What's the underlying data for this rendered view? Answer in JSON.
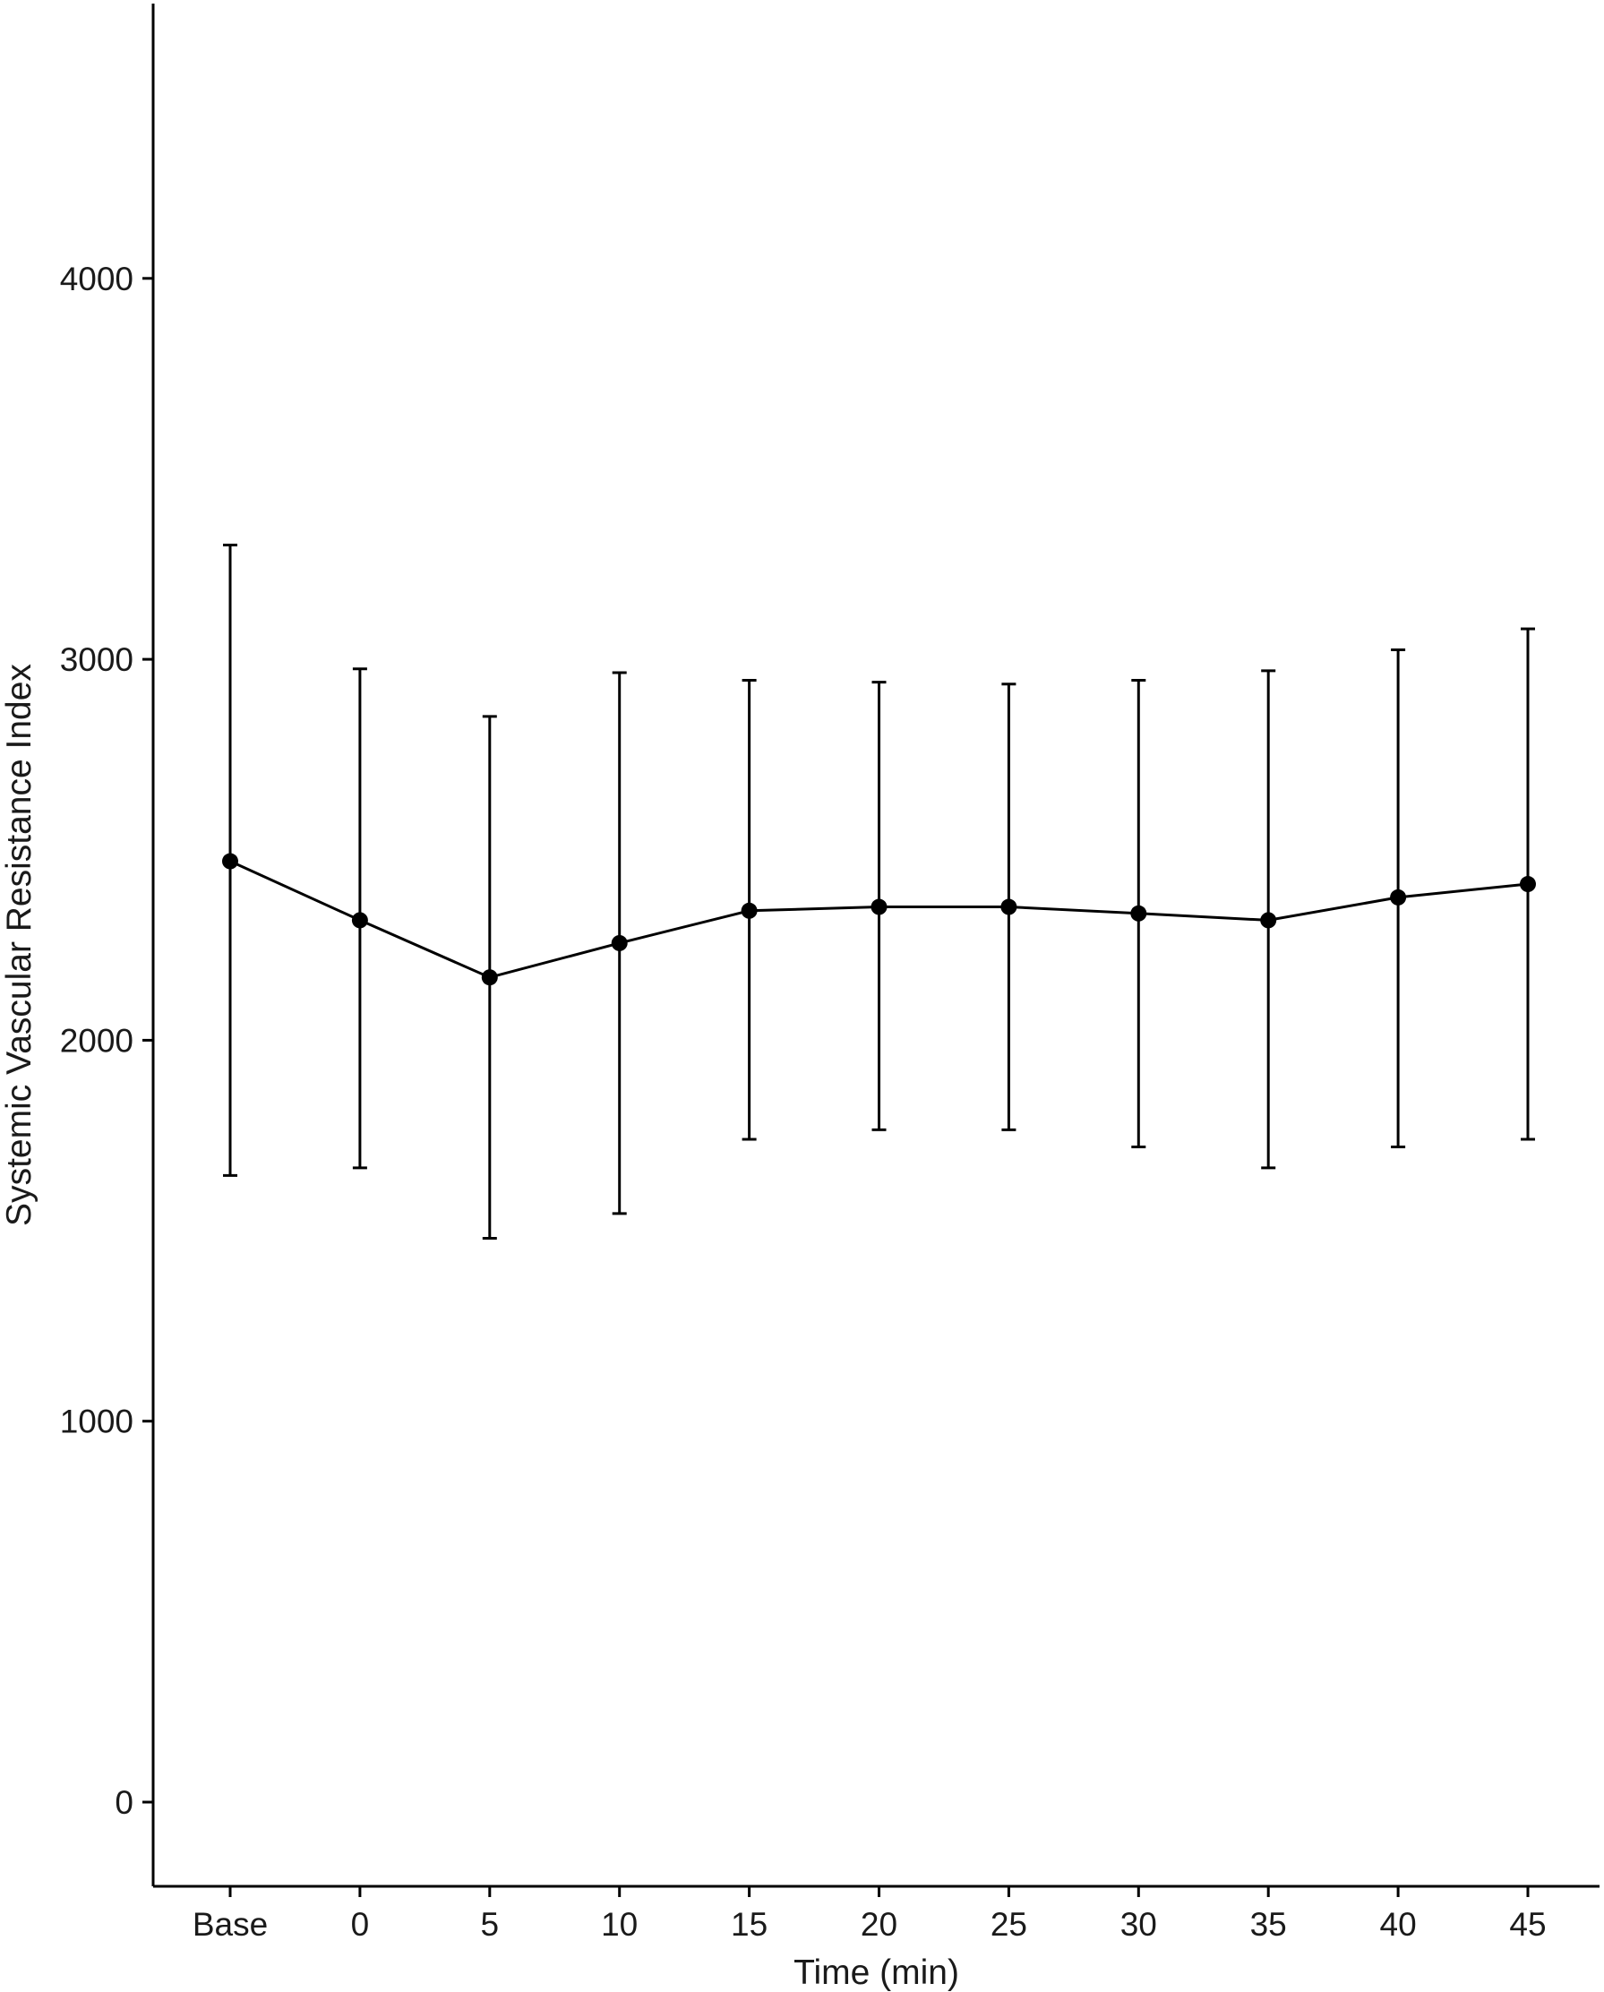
{
  "chart_data": {
    "type": "line",
    "title": "",
    "xlabel": "Time (min)",
    "ylabel": "Systemic Vascular Resistance Index",
    "categories": [
      "Base",
      "0",
      "5",
      "10",
      "15",
      "20",
      "25",
      "30",
      "35",
      "40",
      "45"
    ],
    "y_ticks": [
      0,
      1000,
      2000,
      3000,
      4000
    ],
    "y_tick_labels": [
      "0",
      "1000",
      "2000",
      "3000",
      "4000"
    ],
    "ylim": [
      -220,
      4720
    ],
    "grid": false,
    "legend": "none",
    "series": [
      {
        "values": [
          2470,
          2315,
          2165,
          2255,
          2340,
          2350,
          2350,
          2333,
          2315,
          2375,
          2410
        ],
        "error_low": [
          1645,
          1665,
          1480,
          1545,
          1740,
          1765,
          1765,
          1720,
          1665,
          1720,
          1740
        ],
        "error_high": [
          3300,
          2975,
          2850,
          2965,
          2945,
          2940,
          2935,
          2945,
          2970,
          3025,
          3080
        ],
        "color": "#000000",
        "marker": "circle"
      }
    ]
  }
}
